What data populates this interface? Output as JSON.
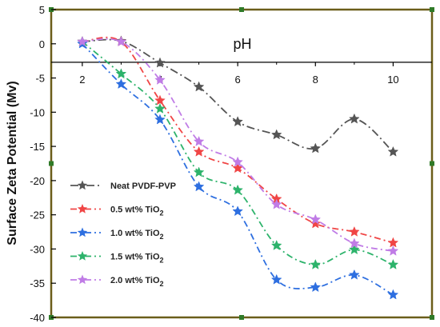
{
  "chart_data": {
    "type": "line",
    "ylabel": "Surface Zeta Potential (Mv)",
    "xlabel": "pH",
    "xlim": [
      1.2,
      11.0
    ],
    "ylim": [
      -40,
      5
    ],
    "x_axis_at_y": -2.7,
    "xticks": [
      2,
      4,
      6,
      8,
      10
    ],
    "yticks": [
      5,
      0,
      -5,
      -10,
      -15,
      -20,
      -25,
      -30,
      -35,
      -40
    ],
    "x": [
      2,
      3,
      4,
      5,
      6,
      7,
      8,
      9,
      10
    ],
    "grid": false,
    "legend_position": "left",
    "series": [
      {
        "name": "Neat PVDF-PVP",
        "name_sub": "",
        "color": "#555555",
        "values": [
          0.3,
          0.4,
          -2.8,
          -6.3,
          -11.4,
          -13.3,
          -15.3,
          -11.0,
          -15.8
        ]
      },
      {
        "name": "0.5 wt% TiO",
        "name_sub": "2",
        "color": "#f04545",
        "values": [
          0.3,
          0.3,
          -8.3,
          -15.8,
          -18.2,
          -22.7,
          -26.3,
          -27.5,
          -29.1
        ]
      },
      {
        "name": "1.0 wt% TiO",
        "name_sub": "2",
        "color": "#2e6fe0",
        "values": [
          0.0,
          -5.9,
          -11.1,
          -20.9,
          -24.5,
          -34.5,
          -35.6,
          -33.8,
          -36.7
        ]
      },
      {
        "name": "1.5 wt% TiO",
        "name_sub": "2",
        "color": "#2db36b",
        "values": [
          0.3,
          -4.4,
          -9.5,
          -18.8,
          -21.4,
          -29.5,
          -32.3,
          -30.1,
          -32.3
        ]
      },
      {
        "name": "2.0 wt% TiO",
        "name_sub": "2",
        "color": "#c07ce6",
        "values": [
          0.3,
          0.3,
          -5.3,
          -14.3,
          -17.3,
          -23.5,
          -25.7,
          -29.2,
          -30.3
        ]
      }
    ],
    "frame_color": "#6b5e1a",
    "corner_marker_color": "#2f7a28"
  }
}
